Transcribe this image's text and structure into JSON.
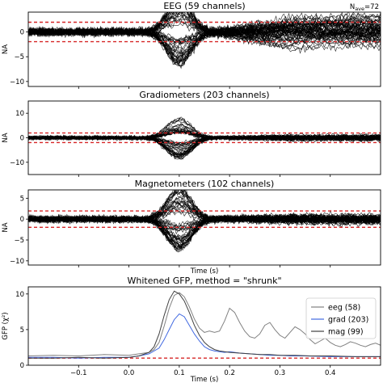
{
  "chart_data": [
    {
      "type": "line",
      "title": "EEG (59 channels)",
      "annotation": "N",
      "annotation_sub": "ave",
      "annotation_suffix": "=72",
      "xlabel": "",
      "ylabel": "NA",
      "xlim": [
        -0.2,
        0.5
      ],
      "ylim": [
        -11,
        4
      ],
      "yticks": [
        -10,
        -5,
        0
      ],
      "channels": 59,
      "noise_band": [
        -1.96,
        1.96
      ],
      "band_color": "#d62728",
      "trace_color": "#000000"
    },
    {
      "type": "line",
      "title": "Gradiometers (203 channels)",
      "xlabel": "",
      "ylabel": "NA",
      "xlim": [
        -0.2,
        0.5
      ],
      "ylim": [
        -15,
        15
      ],
      "yticks": [
        -10,
        0,
        10
      ],
      "channels": 203,
      "noise_band": [
        -1.96,
        1.96
      ],
      "band_color": "#d62728",
      "trace_color": "#000000"
    },
    {
      "type": "line",
      "title": "Magnetometers (102 channels)",
      "xlabel": "Time (s)",
      "ylabel": "NA",
      "xlim": [
        -0.2,
        0.5
      ],
      "ylim": [
        -11,
        7
      ],
      "yticks": [
        -10,
        -5,
        0,
        5
      ],
      "channels": 102,
      "noise_band": [
        -1.96,
        1.96
      ],
      "band_color": "#d62728",
      "trace_color": "#000000"
    },
    {
      "type": "line",
      "title": "Whitened GFP, method = \"shrunk\"",
      "xlabel": "Time (s)",
      "ylabel": "GFP (χ²)",
      "xlim": [
        -0.2,
        0.5
      ],
      "ylim": [
        0,
        11
      ],
      "xticks": [
        -0.1,
        0.0,
        0.1,
        0.2,
        0.3,
        0.4
      ],
      "xticklabels": [
        "−0.1",
        "0.0",
        "0.1",
        "0.2",
        "0.3",
        "0.4"
      ],
      "yticks": [
        0,
        5,
        10
      ],
      "reference_line": 1,
      "reference_color": "#d62728",
      "legend_position": "right",
      "series": [
        {
          "name": "eeg (58)",
          "color": "#808080",
          "x": [
            -0.2,
            -0.15,
            -0.1,
            -0.05,
            0.0,
            0.02,
            0.04,
            0.05,
            0.06,
            0.07,
            0.08,
            0.09,
            0.1,
            0.11,
            0.12,
            0.13,
            0.14,
            0.15,
            0.16,
            0.17,
            0.18,
            0.19,
            0.2,
            0.21,
            0.22,
            0.23,
            0.24,
            0.25,
            0.26,
            0.27,
            0.28,
            0.29,
            0.3,
            0.31,
            0.32,
            0.33,
            0.34,
            0.35,
            0.36,
            0.37,
            0.38,
            0.39,
            0.4,
            0.41,
            0.42,
            0.43,
            0.44,
            0.45,
            0.46,
            0.47,
            0.48,
            0.49,
            0.5
          ],
          "y": [
            1.3,
            1.4,
            1.3,
            1.5,
            1.4,
            1.6,
            1.8,
            2.2,
            3.2,
            5.5,
            8.0,
            9.8,
            10.2,
            9.6,
            8.2,
            6.5,
            5.2,
            4.6,
            4.8,
            4.6,
            4.8,
            6.2,
            8.0,
            7.4,
            6.0,
            4.8,
            4.0,
            3.8,
            4.4,
            5.6,
            6.0,
            5.0,
            4.2,
            3.8,
            4.6,
            5.4,
            5.0,
            4.4,
            3.6,
            3.0,
            3.4,
            3.8,
            3.2,
            2.8,
            2.6,
            2.9,
            3.3,
            3.1,
            2.8,
            2.6,
            2.9,
            3.1,
            2.8
          ]
        },
        {
          "name": "grad (203)",
          "color": "#4169e1",
          "x": [
            -0.2,
            -0.15,
            -0.1,
            -0.05,
            0.0,
            0.02,
            0.04,
            0.06,
            0.07,
            0.08,
            0.09,
            0.1,
            0.11,
            0.12,
            0.13,
            0.14,
            0.15,
            0.16,
            0.17,
            0.18,
            0.19,
            0.2,
            0.22,
            0.24,
            0.26,
            0.28,
            0.3,
            0.32,
            0.35,
            0.4,
            0.45,
            0.5
          ],
          "y": [
            1.1,
            1.1,
            1.0,
            1.1,
            1.1,
            1.3,
            1.6,
            2.4,
            3.6,
            5.0,
            6.4,
            7.2,
            6.8,
            5.6,
            4.4,
            3.4,
            2.6,
            2.2,
            2.0,
            1.9,
            1.8,
            1.9,
            1.7,
            1.6,
            1.5,
            1.4,
            1.4,
            1.3,
            1.3,
            1.2,
            1.2,
            1.2
          ]
        },
        {
          "name": "mag (99)",
          "color": "#404040",
          "x": [
            -0.2,
            -0.15,
            -0.1,
            -0.05,
            0.0,
            0.02,
            0.04,
            0.05,
            0.06,
            0.07,
            0.08,
            0.09,
            0.1,
            0.11,
            0.12,
            0.13,
            0.14,
            0.15,
            0.16,
            0.17,
            0.18,
            0.19,
            0.2,
            0.22,
            0.24,
            0.26,
            0.28,
            0.3,
            0.33,
            0.36,
            0.4,
            0.45,
            0.5
          ],
          "y": [
            1.0,
            1.0,
            1.1,
            1.0,
            1.1,
            1.3,
            1.8,
            2.6,
            4.4,
            7.0,
            9.2,
            10.4,
            10.0,
            9.0,
            7.4,
            5.6,
            4.2,
            3.2,
            2.6,
            2.2,
            2.0,
            1.9,
            1.8,
            1.7,
            1.6,
            1.5,
            1.5,
            1.4,
            1.4,
            1.3,
            1.3,
            1.2,
            1.2
          ]
        }
      ]
    }
  ]
}
